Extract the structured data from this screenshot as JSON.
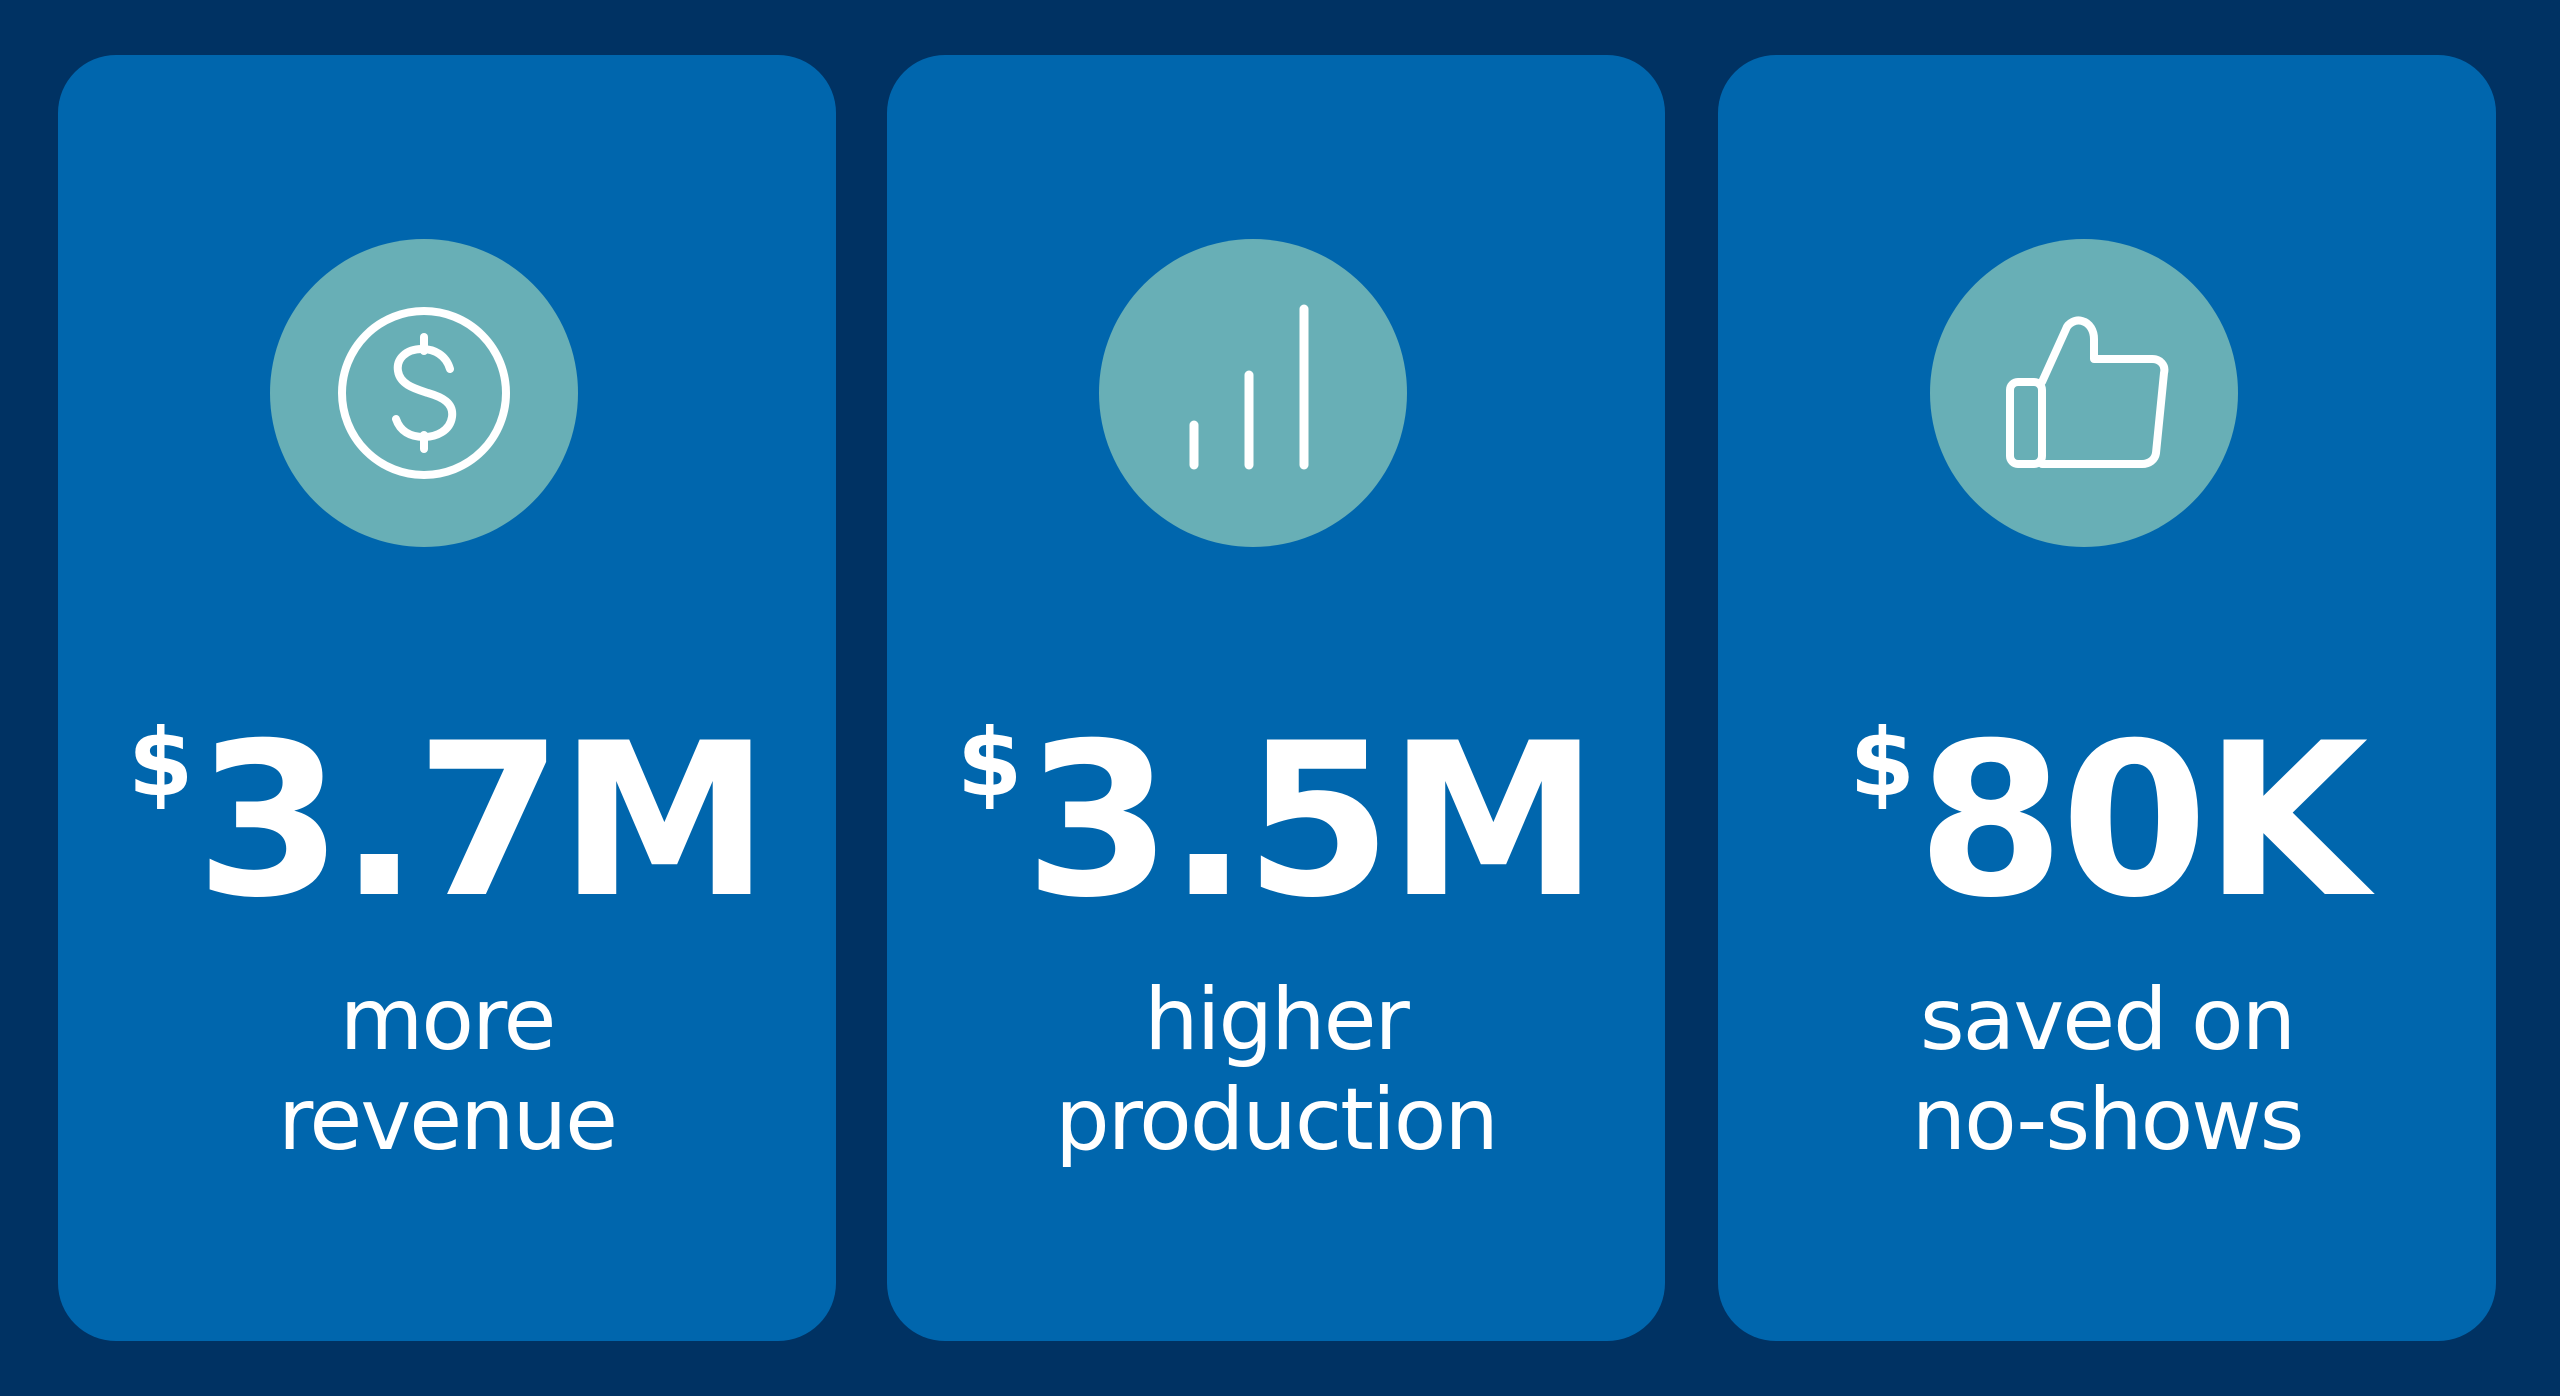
{
  "cards": [
    {
      "icon": "dollar-circle-icon",
      "currency": "$",
      "value": "3.7M",
      "line1": "more",
      "line2": "revenue"
    },
    {
      "icon": "bar-chart-icon",
      "currency": "$",
      "value": "3.5M",
      "line1": "higher",
      "line2": "production"
    },
    {
      "icon": "thumbs-up-icon",
      "currency": "$",
      "value": "80K",
      "line1": "saved on",
      "line2": "no-shows"
    }
  ],
  "colors": {
    "background": "#003263",
    "card": "#0066AD",
    "icon_circle": "#68AFB6",
    "text": "#FFFFFF"
  }
}
